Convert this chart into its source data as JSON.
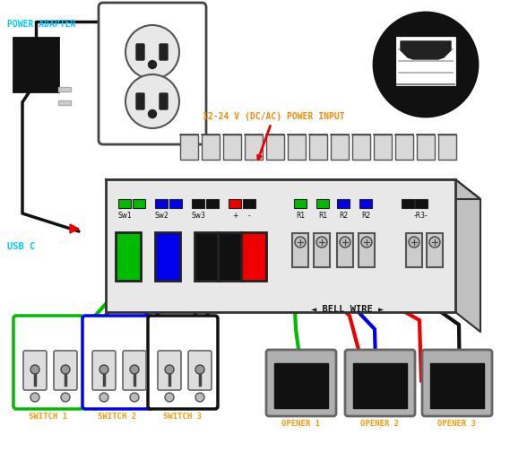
{
  "bg_color": "#ffffff",
  "power_adapter_label": "POWER ADAPTER",
  "usb_c_label": "USB C",
  "power_input_label": "12-24 V (DC/AC) POWER INPUT",
  "bell_wire_label": "◄ BELL WIRE ►",
  "switch_labels": [
    "SWITCH 1",
    "SWITCH 2",
    "SWITCH 3"
  ],
  "opener_labels": [
    "OPENER 1",
    "OPENER 2",
    "OPENER 3"
  ],
  "label_color_power": "#00ccff",
  "label_color_power_input": "#ff8800",
  "label_color_switch": "#ff9900",
  "label_color_opener": "#ff9900",
  "wire_green": "#00bb00",
  "wire_blue": "#0000ee",
  "wire_black": "#111111",
  "wire_red": "#ee0000",
  "box_face": "#e8e8e8",
  "box_top": "#d0d0d0",
  "box_right": "#c0c0c0",
  "box_edge": "#333333"
}
